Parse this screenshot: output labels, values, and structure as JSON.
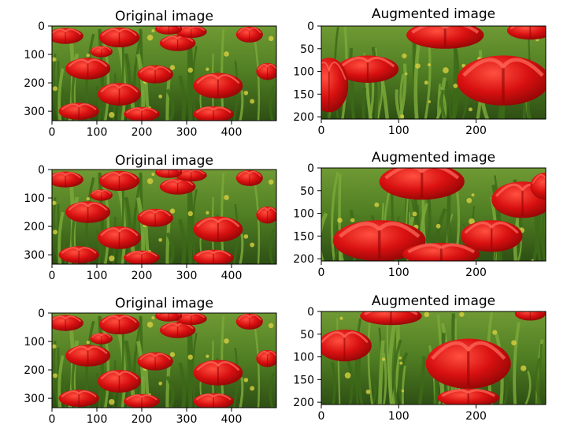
{
  "chart_data": [
    {
      "type": "image",
      "title": "Original image",
      "xticks": [
        0,
        100,
        200,
        300,
        400
      ],
      "yticks": [
        0,
        100,
        200,
        300
      ],
      "xlim": [
        0,
        500
      ],
      "ylim": [
        0,
        333
      ]
    },
    {
      "type": "image",
      "title": "Augmented image",
      "xticks": [
        0,
        100,
        200
      ],
      "yticks": [
        0,
        50,
        100,
        150,
        200
      ],
      "xlim": [
        0,
        290
      ],
      "ylim": [
        0,
        205
      ]
    },
    {
      "type": "image",
      "title": "Original image",
      "xticks": [
        0,
        100,
        200,
        300,
        400
      ],
      "yticks": [
        0,
        100,
        200,
        300
      ],
      "xlim": [
        0,
        500
      ],
      "ylim": [
        0,
        333
      ]
    },
    {
      "type": "image",
      "title": "Augmented image",
      "xticks": [
        0,
        100,
        200
      ],
      "yticks": [
        0,
        50,
        100,
        150,
        200
      ],
      "xlim": [
        0,
        290
      ],
      "ylim": [
        0,
        205
      ]
    },
    {
      "type": "image",
      "title": "Original image",
      "xticks": [
        0,
        100,
        200,
        300,
        400
      ],
      "yticks": [
        0,
        100,
        200,
        300
      ],
      "xlim": [
        0,
        500
      ],
      "ylim": [
        0,
        333
      ]
    },
    {
      "type": "image",
      "title": "Augmented image",
      "xticks": [
        0,
        100,
        200
      ],
      "yticks": [
        0,
        50,
        100,
        150,
        200
      ],
      "xlim": [
        0,
        290
      ],
      "ylim": [
        0,
        205
      ]
    }
  ],
  "colors": {
    "tulip_red": "#d81010",
    "tulip_dark": "#9a0a0a",
    "foliage": "#5d8a2a",
    "foliage_dark": "#2f4d16",
    "highlight": "#ff5a4a"
  }
}
